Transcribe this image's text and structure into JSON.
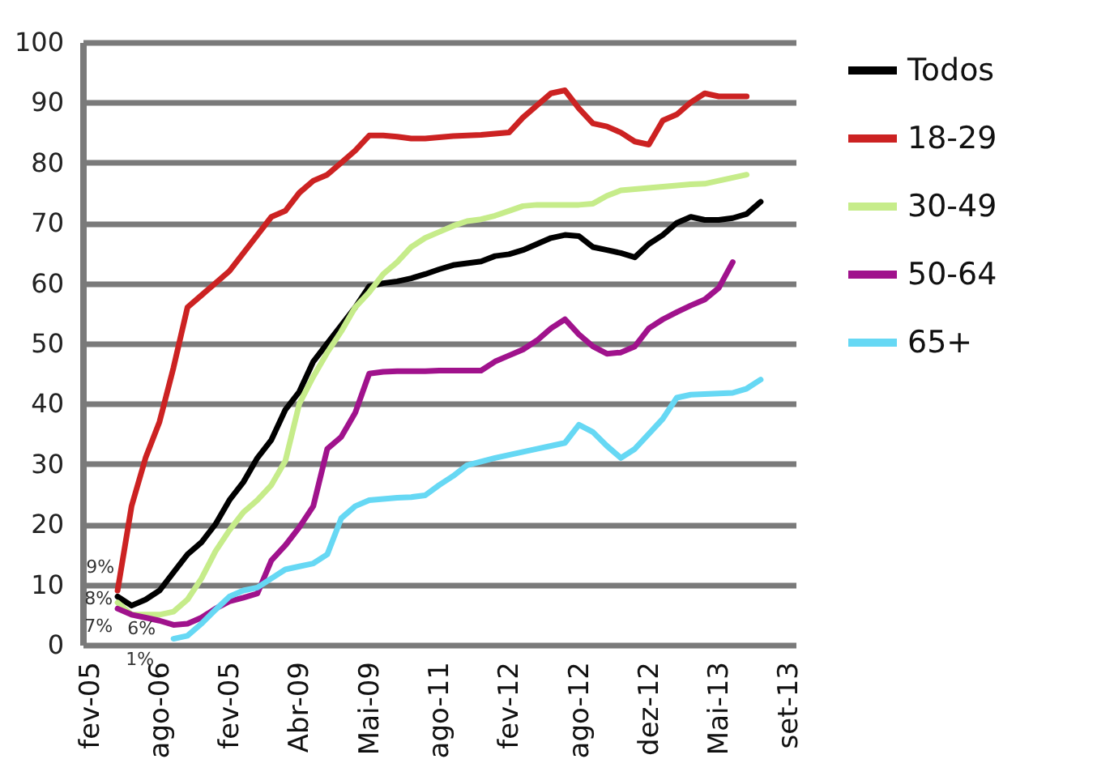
{
  "chart_data": {
    "type": "line",
    "categories": [
      "fev-05",
      null,
      null,
      null,
      null,
      "ago-06",
      null,
      null,
      null,
      null,
      "fev-05",
      null,
      null,
      null,
      null,
      "Abr-09",
      null,
      null,
      null,
      null,
      "Mai-09",
      null,
      null,
      null,
      null,
      "ago-11",
      null,
      null,
      null,
      null,
      "fev-12",
      null,
      null,
      null,
      null,
      "ago-12",
      null,
      null,
      null,
      null,
      "dez-12",
      null,
      null,
      null,
      null,
      "Mai-13",
      null,
      null,
      null,
      null,
      "set-13"
    ],
    "series": [
      {
        "name": "Todos",
        "color": "#000000",
        "values": [
          null,
          null,
          8,
          6.5,
          7.5,
          9,
          12,
          15,
          17,
          20,
          24,
          27,
          31,
          34,
          39,
          42,
          47,
          50,
          53,
          56,
          59.5,
          60,
          60.3,
          60.8,
          61.5,
          62.3,
          63,
          63.3,
          63.6,
          64.5,
          64.8,
          65.5,
          66.5,
          67.5,
          68,
          67.8,
          66,
          65.5,
          65,
          64.3,
          66.5,
          68,
          70,
          71,
          70.5,
          70.5,
          70.8,
          71.5,
          73.5,
          null,
          null
        ]
      },
      {
        "name": "18-29",
        "color": "#cc2222",
        "values": [
          null,
          null,
          9,
          23,
          31,
          37,
          46,
          56,
          58,
          60,
          62,
          65,
          68,
          71,
          72,
          75,
          77,
          78,
          80,
          82,
          84.5,
          84.5,
          84.3,
          84,
          84,
          84.2,
          84.4,
          84.5,
          84.6,
          84.8,
          85,
          87.5,
          89.5,
          91.5,
          92,
          89,
          86.5,
          86,
          85,
          83.5,
          83,
          87,
          88,
          90,
          91.5,
          91,
          91,
          91,
          null,
          null,
          null
        ]
      },
      {
        "name": "30-49",
        "color": "#c6ec8a",
        "values": [
          null,
          null,
          7,
          5,
          5,
          5,
          5.5,
          7.5,
          11,
          15.5,
          19,
          22,
          24,
          26.5,
          30.5,
          40,
          44.5,
          48.5,
          52,
          56,
          58.5,
          61.5,
          63.5,
          66,
          67.5,
          68.5,
          69.5,
          70.3,
          70.6,
          71.2,
          72,
          72.8,
          73,
          73,
          73,
          73,
          73.2,
          74.5,
          75.4,
          75.6,
          75.8,
          76,
          76.2,
          76.4,
          76.5,
          77,
          77.5,
          78,
          null,
          null,
          null
        ]
      },
      {
        "name": "50-64",
        "color": "#a0128c",
        "values": [
          null,
          null,
          6,
          5,
          4.5,
          4,
          3.3,
          3.5,
          4.5,
          6,
          7.2,
          7.8,
          8.5,
          14,
          16.5,
          19.5,
          23,
          32.5,
          34.5,
          38.5,
          45,
          45.3,
          45.4,
          45.4,
          45.4,
          45.5,
          45.5,
          45.5,
          45.5,
          47,
          48,
          49,
          50.5,
          52.5,
          54,
          51.5,
          49.5,
          48.3,
          48.5,
          49.5,
          52.5,
          54,
          55.2,
          56.3,
          57.3,
          59.2,
          63.5,
          null,
          null,
          null,
          null
        ]
      },
      {
        "name": "65+",
        "color": "#66d8f4",
        "values": [
          null,
          null,
          null,
          null,
          null,
          null,
          1,
          1.5,
          3.5,
          5.8,
          8,
          9,
          9.5,
          11,
          12.5,
          13,
          13.5,
          15,
          21,
          23,
          24,
          24.2,
          24.4,
          24.5,
          24.8,
          26.5,
          28,
          29.8,
          30.4,
          31,
          31.5,
          32,
          32.5,
          33,
          33.5,
          36.5,
          35.3,
          33,
          31,
          32.5,
          35,
          37.5,
          41,
          41.5,
          41.6,
          41.7,
          41.8,
          42.5,
          44,
          null,
          null
        ]
      }
    ],
    "annotations": [
      "8%",
      "9%",
      "7%",
      "6%",
      "1%"
    ],
    "ylim": [
      0,
      100
    ],
    "yticks": [
      0,
      10,
      20,
      30,
      40,
      50,
      60,
      70,
      80,
      90,
      100
    ],
    "grid": "y",
    "legend": "right",
    "marker": "none",
    "line_style": "solid"
  }
}
